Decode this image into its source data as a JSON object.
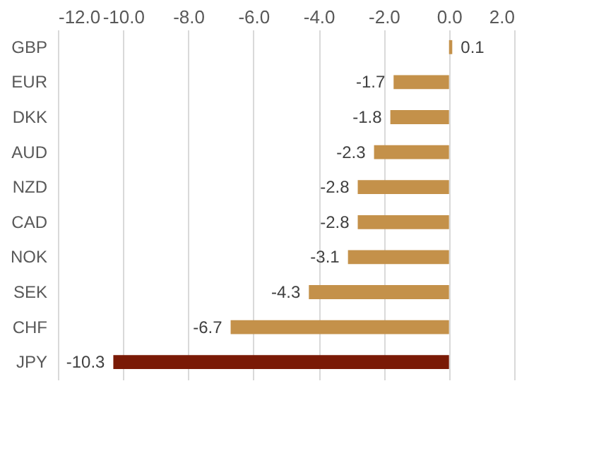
{
  "chart_data": {
    "type": "bar",
    "orientation": "horizontal",
    "categories": [
      "GBP",
      "EUR",
      "DKK",
      "AUD",
      "NZD",
      "CAD",
      "NOK",
      "SEK",
      "CHF",
      "JPY"
    ],
    "values": [
      0.1,
      -1.7,
      -1.8,
      -2.3,
      -2.8,
      -2.8,
      -3.1,
      -4.3,
      -6.7,
      -10.3
    ],
    "colors": [
      "#c4914a",
      "#c4914a",
      "#c4914a",
      "#c4914a",
      "#c4914a",
      "#c4914a",
      "#c4914a",
      "#c4914a",
      "#c4914a",
      "#7a1a06"
    ],
    "xlim": [
      -12,
      2
    ],
    "xticks": [
      {
        "value": -12,
        "label": "-12.0"
      },
      {
        "value": -10,
        "label": "-10.0"
      },
      {
        "value": -8,
        "label": "-8.0"
      },
      {
        "value": -6,
        "label": "-6.0"
      },
      {
        "value": -4,
        "label": "-4.0"
      },
      {
        "value": -2,
        "label": "-2.0"
      },
      {
        "value": 0,
        "label": "0.0"
      },
      {
        "value": 2,
        "label": "2.0"
      }
    ],
    "grid": "x",
    "data_labels": true
  }
}
